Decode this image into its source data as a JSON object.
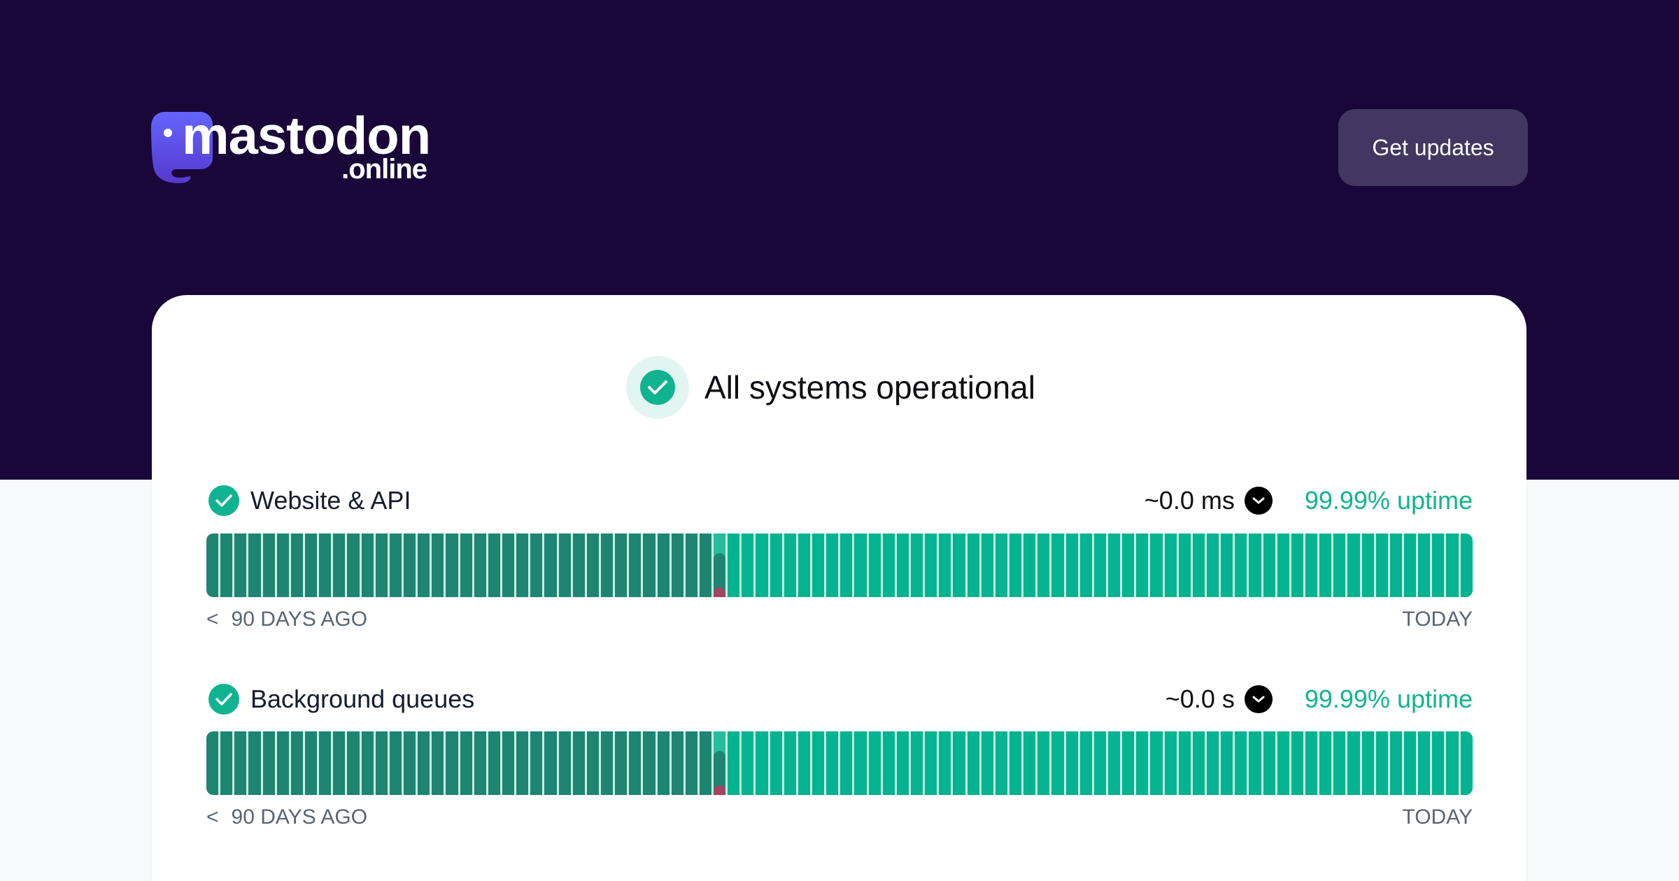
{
  "header": {
    "logo_word": "mastodon",
    "logo_sub": ".online",
    "cta_label": "Get updates"
  },
  "status": {
    "text": "All systems operational",
    "icon": "check-circle-icon"
  },
  "colors": {
    "hero_bg": "#19073a",
    "accent": "#11b48f",
    "bar_old": "#1e8572",
    "bar_new": "#04b38f",
    "incident": "#a34462",
    "button_bg": "#433660"
  },
  "services": [
    {
      "name": "Website & API",
      "latency": "~0.0 ms",
      "uptime": "99.99% uptime",
      "range_start": "90 DAYS AGO",
      "range_end": "TODAY",
      "days": 90,
      "incident_day_index": 36
    },
    {
      "name": "Background queues",
      "latency": "~0.0 s",
      "uptime": "99.99% uptime",
      "range_start": "90 DAYS AGO",
      "range_end": "TODAY",
      "days": 90,
      "incident_day_index": 36
    }
  ]
}
